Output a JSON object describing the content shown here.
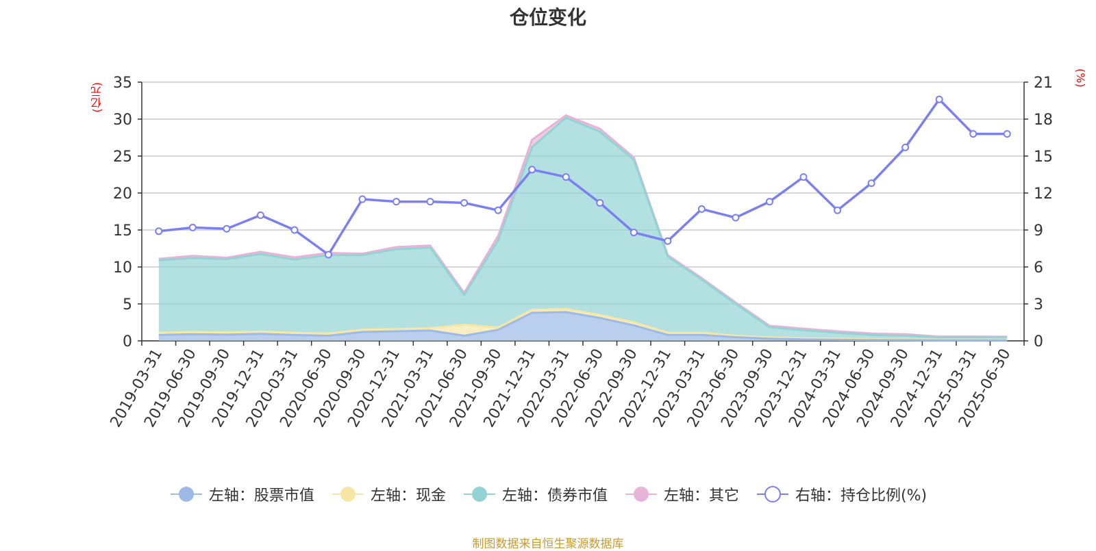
{
  "title": "仓位变化",
  "left_unit": "(亿元)",
  "right_unit": "(%)",
  "source": "制图数据来自恒生聚源数据库",
  "colors": {
    "stock": "#9db9e6",
    "cash": "#f7e7a6",
    "bond": "#93d3d3",
    "other": "#e7b3d9",
    "ratio": "#7b7ff0",
    "axis": "#333333",
    "grid": "#cccccc"
  },
  "chart_data": {
    "type": "area",
    "categories": [
      "2019-03-31",
      "2019-06-30",
      "2019-09-30",
      "2019-12-31",
      "2020-03-31",
      "2020-06-30",
      "2020-09-30",
      "2020-12-31",
      "2021-03-31",
      "2021-06-30",
      "2021-09-30",
      "2021-12-31",
      "2022-03-31",
      "2022-06-30",
      "2022-09-30",
      "2022-12-31",
      "2023-03-31",
      "2023-06-30",
      "2023-09-30",
      "2023-12-31",
      "2024-03-31",
      "2024-06-30",
      "2024-09-30",
      "2024-12-31",
      "2025-03-31",
      "2025-06-30"
    ],
    "y_left": {
      "min": 0,
      "max": 35,
      "ticks": [
        0,
        5,
        10,
        15,
        20,
        25,
        30,
        35
      ]
    },
    "y_right": {
      "min": 0,
      "max": 21,
      "ticks": [
        0,
        3,
        6,
        9,
        12,
        15,
        18,
        21
      ]
    },
    "stacked": true,
    "series": [
      {
        "name": "左轴：股票市值",
        "axis": "left",
        "values": [
          0.8,
          0.9,
          0.85,
          0.95,
          0.8,
          0.7,
          1.2,
          1.3,
          1.4,
          0.7,
          1.5,
          3.8,
          3.9,
          3.1,
          2.1,
          0.8,
          0.8,
          0.5,
          0.3,
          0.2,
          0.15,
          0.12,
          0.1,
          0.08,
          0.08,
          0.07
        ]
      },
      {
        "name": "左轴：现金",
        "axis": "left",
        "values": [
          0.3,
          0.3,
          0.3,
          0.3,
          0.3,
          0.3,
          0.3,
          0.3,
          0.3,
          1.5,
          0.3,
          0.4,
          0.4,
          0.4,
          0.4,
          0.3,
          0.3,
          0.2,
          0.15,
          0.15,
          0.15,
          0.1,
          0.1,
          0.1,
          0.1,
          0.1
        ]
      },
      {
        "name": "左轴：债券市值",
        "axis": "left",
        "values": [
          9.8,
          10.0,
          9.9,
          10.5,
          9.9,
          10.6,
          10.1,
          10.8,
          10.9,
          4.0,
          11.8,
          22.0,
          25.9,
          24.8,
          22.0,
          10.3,
          7.2,
          4.3,
          1.4,
          1.1,
          0.8,
          0.58,
          0.5,
          0.3,
          0.3,
          0.3
        ]
      },
      {
        "name": "左轴：其它",
        "axis": "left",
        "values": [
          0.2,
          0.3,
          0.2,
          0.3,
          0.3,
          0.3,
          0.2,
          0.3,
          0.3,
          0.3,
          0.6,
          1.0,
          0.3,
          0.4,
          0.3,
          0.2,
          0.2,
          0.2,
          0.2,
          0.2,
          0.2,
          0.2,
          0.2,
          0.1,
          0.1,
          0.1
        ]
      },
      {
        "name": "右轴：持仓比例(%)",
        "axis": "right",
        "type": "line",
        "values": [
          8.9,
          9.2,
          9.1,
          10.2,
          9.0,
          7.0,
          11.5,
          11.3,
          11.3,
          11.2,
          10.6,
          13.9,
          13.3,
          11.2,
          8.8,
          8.1,
          10.7,
          10.0,
          11.3,
          13.3,
          10.6,
          12.8,
          15.7,
          19.6,
          16.8,
          16.8
        ]
      }
    ]
  }
}
